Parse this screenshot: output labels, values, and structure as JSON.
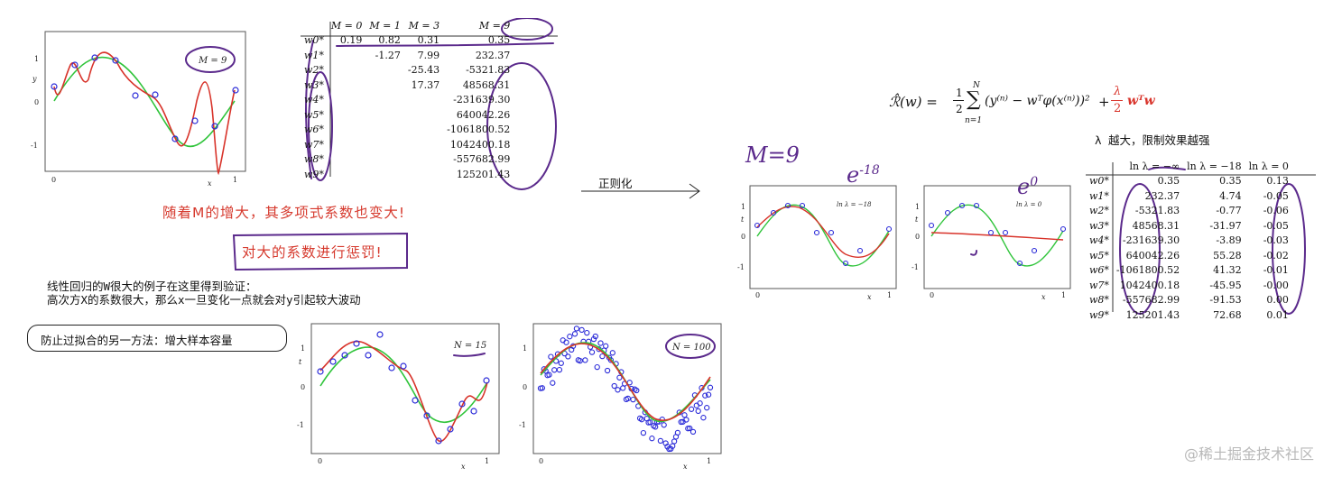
{
  "plot_m9": {
    "label": "M = 9",
    "axis_x": "x",
    "axis_y": "y",
    "xticks": [
      "0",
      "1"
    ],
    "yticks": [
      "1",
      "0",
      "-1"
    ]
  },
  "coef_table": {
    "headers": [
      "M = 0",
      "M = 1",
      "M = 3",
      "M = 9"
    ],
    "row_labels": [
      "w0*",
      "w1*",
      "w2*",
      "w3*",
      "w4*",
      "w5*",
      "w6*",
      "w7*",
      "w8*",
      "w9*"
    ],
    "rows": [
      [
        "0.19",
        "0.82",
        "0.31",
        "0.35"
      ],
      [
        "",
        "-1.27",
        "7.99",
        "232.37"
      ],
      [
        "",
        "",
        "-25.43",
        "-5321.83"
      ],
      [
        "",
        "",
        "17.37",
        "48568.31"
      ],
      [
        "",
        "",
        "",
        "-231639.30"
      ],
      [
        "",
        "",
        "",
        "640042.26"
      ],
      [
        "",
        "",
        "",
        "-1061800.52"
      ],
      [
        "",
        "",
        "",
        "1042400.18"
      ],
      [
        "",
        "",
        "",
        "-557682.99"
      ],
      [
        "",
        "",
        "",
        "125201.43"
      ]
    ]
  },
  "notes": {
    "growth": "随着M的增大，其多项式系数也变大!",
    "penalize": "对大的系数进行惩罚!",
    "verify_line1": "线性回归的W很大的例子在这里得到验证：",
    "verify_line2": "高次方X的系数很大，那么x一旦变化一点就会对y引起较大波动",
    "other_method": "防止过拟合的另一方法：增大样本容量",
    "regularize": "正则化",
    "m9_handwritten": "M=9",
    "lambda_note": "λ 越大，限制效果越强",
    "e_neg18": "e",
    "e_neg18_exp": "-18",
    "e_zero": "e",
    "e_zero_exp": "0"
  },
  "formula": {
    "lhs": "ℛ̂(w) =",
    "half": "1",
    "half_den": "2",
    "sum_top": "N",
    "sum_bottom": "n=1",
    "body": "(y⁽ⁿ⁾ − wᵀφ(x⁽ⁿ⁾))²",
    "plus": "+",
    "lambda": "λ",
    "lambda_den": "2",
    "reg": "wᵀw"
  },
  "plot_n15": {
    "label": "N = 15",
    "axis_x": "x",
    "axis_y": "t",
    "xticks": [
      "0",
      "1"
    ],
    "yticks": [
      "1",
      "0",
      "-1"
    ]
  },
  "plot_n100": {
    "label": "N = 100",
    "axis_x": "x",
    "axis_y": "t",
    "xticks": [
      "0",
      "1"
    ],
    "yticks": [
      "1",
      "0",
      "-1"
    ]
  },
  "plot_lam18": {
    "label": "ln λ = −18",
    "axis_x": "x",
    "axis_y": "t",
    "xticks": [
      "0",
      "1"
    ],
    "yticks": [
      "1",
      "0",
      "-1"
    ]
  },
  "plot_lam0": {
    "label": "ln λ = 0",
    "axis_x": "x",
    "axis_y": "t",
    "xticks": [
      "0",
      "1"
    ],
    "yticks": [
      "1",
      "0",
      "-1"
    ]
  },
  "lambda_table": {
    "headers": [
      "ln λ = −∞",
      "ln λ = −18",
      "ln λ = 0"
    ],
    "row_labels": [
      "w0*",
      "w1*",
      "w2*",
      "w3*",
      "w4*",
      "w5*",
      "w6*",
      "w7*",
      "w8*",
      "w9*"
    ],
    "rows": [
      [
        "0.35",
        "0.35",
        "0.13"
      ],
      [
        "232.37",
        "4.74",
        "-0.05"
      ],
      [
        "-5321.83",
        "-0.77",
        "-0.06"
      ],
      [
        "48568.31",
        "-31.97",
        "-0.05"
      ],
      [
        "-231639.30",
        "-3.89",
        "-0.03"
      ],
      [
        "640042.26",
        "55.28",
        "-0.02"
      ],
      [
        "-1061800.52",
        "41.32",
        "-0.01"
      ],
      [
        "1042400.18",
        "-45.95",
        "-0.00"
      ],
      [
        "-557682.99",
        "-91.53",
        "0.00"
      ],
      [
        "125201.43",
        "72.68",
        "0.01"
      ]
    ]
  },
  "watermark": "@稀土掘金技术社区",
  "colors": {
    "fit": "#d8332a",
    "truth": "#2fc43a",
    "points": "#2a2ad8",
    "annotation": "#5b2a8c",
    "note": "#d63a2e"
  }
}
